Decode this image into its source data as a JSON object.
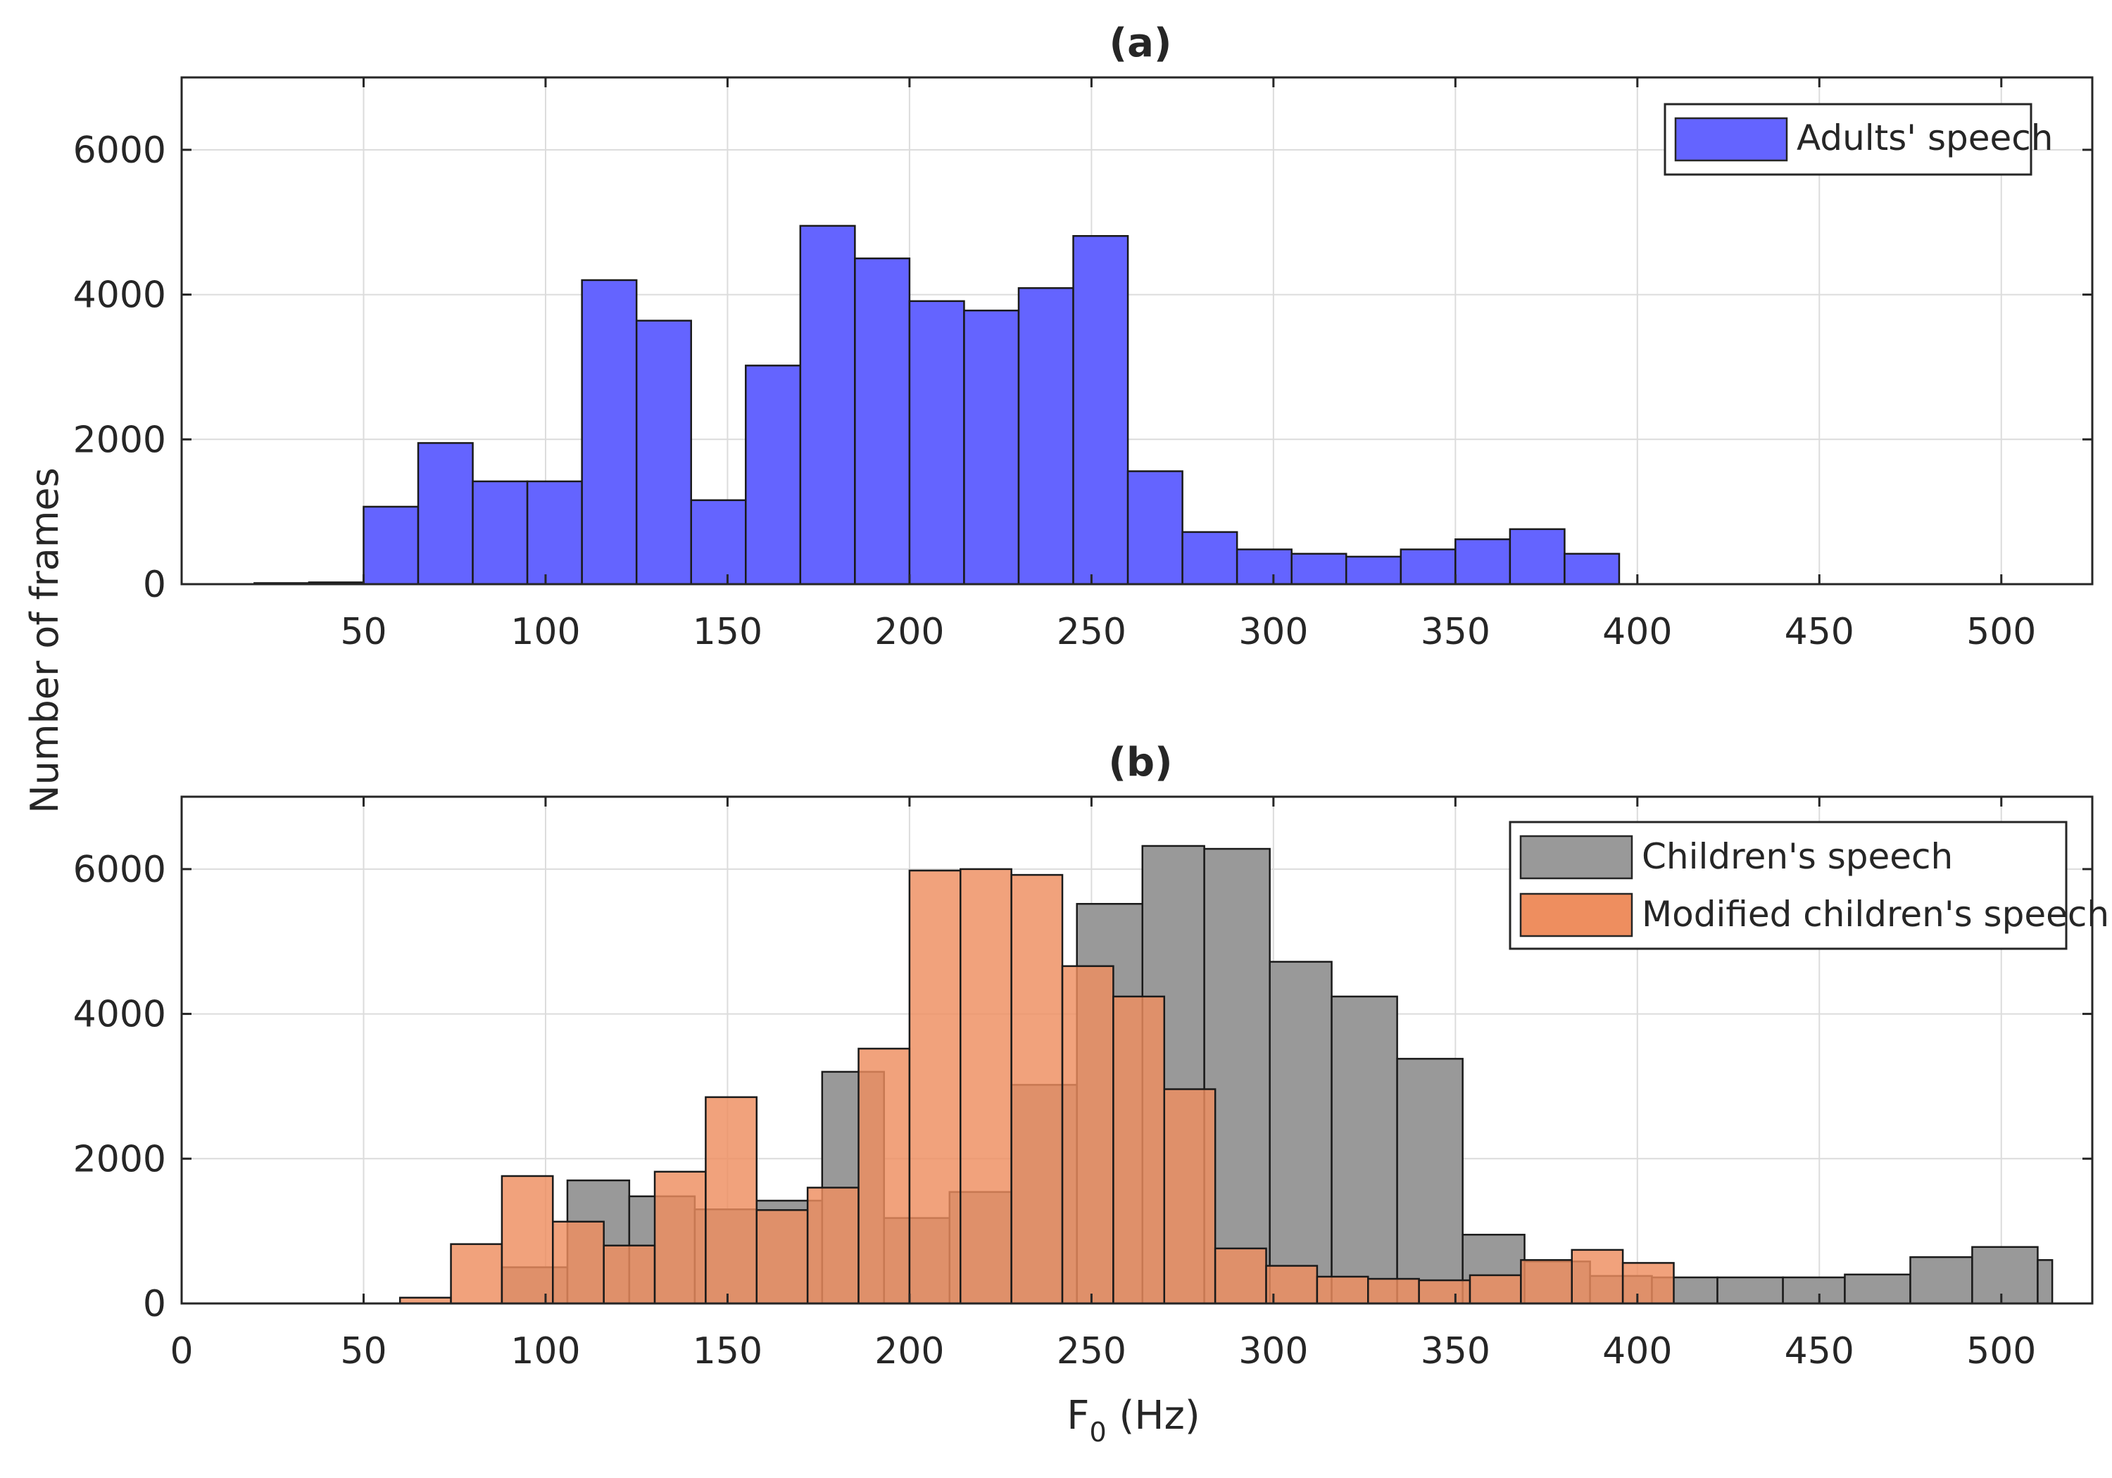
{
  "chart_data": [
    {
      "type": "bar",
      "panel_label": "(a)",
      "title": "(a)",
      "xlabel": "",
      "ylabel": "Number of frames",
      "xlim": [
        0,
        525
      ],
      "ylim": [
        0,
        7000
      ],
      "xticks": [
        50,
        100,
        150,
        200,
        250,
        300,
        350,
        400,
        450,
        500
      ],
      "yticks": [
        0,
        2000,
        4000,
        6000
      ],
      "grid": true,
      "legend": {
        "location": "top-right",
        "entries": [
          "Adults' speech"
        ]
      },
      "series": [
        {
          "name": "Adults' speech",
          "color": "#6464FF",
          "bins": [
            {
              "x0": 20,
              "x1": 35,
              "count": 15
            },
            {
              "x0": 35,
              "x1": 50,
              "count": 25
            },
            {
              "x0": 50,
              "x1": 65,
              "count": 1070
            },
            {
              "x0": 65,
              "x1": 80,
              "count": 1950
            },
            {
              "x0": 80,
              "x1": 95,
              "count": 1420
            },
            {
              "x0": 95,
              "x1": 110,
              "count": 1420
            },
            {
              "x0": 110,
              "x1": 125,
              "count": 4200
            },
            {
              "x0": 125,
              "x1": 140,
              "count": 3640
            },
            {
              "x0": 140,
              "x1": 155,
              "count": 1160
            },
            {
              "x0": 155,
              "x1": 170,
              "count": 3020
            },
            {
              "x0": 170,
              "x1": 185,
              "count": 4950
            },
            {
              "x0": 185,
              "x1": 200,
              "count": 4500
            },
            {
              "x0": 200,
              "x1": 215,
              "count": 3910
            },
            {
              "x0": 215,
              "x1": 230,
              "count": 3780
            },
            {
              "x0": 230,
              "x1": 245,
              "count": 4090
            },
            {
              "x0": 245,
              "x1": 260,
              "count": 4810
            },
            {
              "x0": 260,
              "x1": 275,
              "count": 1560
            },
            {
              "x0": 275,
              "x1": 290,
              "count": 720
            },
            {
              "x0": 290,
              "x1": 305,
              "count": 480
            },
            {
              "x0": 305,
              "x1": 320,
              "count": 420
            },
            {
              "x0": 320,
              "x1": 335,
              "count": 380
            },
            {
              "x0": 335,
              "x1": 350,
              "count": 480
            },
            {
              "x0": 350,
              "x1": 365,
              "count": 620
            },
            {
              "x0": 365,
              "x1": 380,
              "count": 760
            },
            {
              "x0": 380,
              "x1": 395,
              "count": 420
            }
          ]
        }
      ]
    },
    {
      "type": "bar",
      "panel_label": "(b)",
      "title": "(b)",
      "xlabel": "F",
      "xlabel_sub": "0",
      "xlabel_unit": " (Hz)",
      "ylabel": "Number of frames",
      "xlim": [
        0,
        525
      ],
      "ylim": [
        0,
        7000
      ],
      "xticks": [
        0,
        50,
        100,
        150,
        200,
        250,
        300,
        350,
        400,
        450,
        500
      ],
      "yticks": [
        0,
        2000,
        4000,
        6000
      ],
      "grid": true,
      "legend": {
        "location": "top-right",
        "entries": [
          "Children's speech",
          "Modified children's speech"
        ]
      },
      "series": [
        {
          "name": "Children's speech",
          "color": "#999999",
          "bins": [
            {
              "x0": 88,
              "x1": 106,
              "count": 500
            },
            {
              "x0": 106,
              "x1": 123,
              "count": 1700
            },
            {
              "x0": 123,
              "x1": 141,
              "count": 1480
            },
            {
              "x0": 141,
              "x1": 158,
              "count": 1300
            },
            {
              "x0": 158,
              "x1": 176,
              "count": 1420
            },
            {
              "x0": 176,
              "x1": 193,
              "count": 3200
            },
            {
              "x0": 193,
              "x1": 211,
              "count": 1180
            },
            {
              "x0": 211,
              "x1": 228,
              "count": 1540
            },
            {
              "x0": 228,
              "x1": 246,
              "count": 3020
            },
            {
              "x0": 246,
              "x1": 264,
              "count": 5520
            },
            {
              "x0": 264,
              "x1": 281,
              "count": 6320
            },
            {
              "x0": 281,
              "x1": 299,
              "count": 6280
            },
            {
              "x0": 299,
              "x1": 316,
              "count": 4720
            },
            {
              "x0": 316,
              "x1": 334,
              "count": 4240
            },
            {
              "x0": 334,
              "x1": 352,
              "count": 3380
            },
            {
              "x0": 352,
              "x1": 369,
              "count": 950
            },
            {
              "x0": 369,
              "x1": 387,
              "count": 580
            },
            {
              "x0": 387,
              "x1": 404,
              "count": 380
            },
            {
              "x0": 404,
              "x1": 422,
              "count": 360
            },
            {
              "x0": 422,
              "x1": 440,
              "count": 360
            },
            {
              "x0": 440,
              "x1": 457,
              "count": 360
            },
            {
              "x0": 457,
              "x1": 475,
              "count": 400
            },
            {
              "x0": 475,
              "x1": 492,
              "count": 640
            },
            {
              "x0": 492,
              "x1": 510,
              "count": 780
            },
            {
              "x0": 510,
              "x1": 514,
              "count": 600
            }
          ]
        },
        {
          "name": "Modified children's speech",
          "color": "#EE8E5F",
          "bins": [
            {
              "x0": 60,
              "x1": 74,
              "count": 80
            },
            {
              "x0": 74,
              "x1": 88,
              "count": 820
            },
            {
              "x0": 88,
              "x1": 102,
              "count": 1760
            },
            {
              "x0": 102,
              "x1": 116,
              "count": 1130
            },
            {
              "x0": 116,
              "x1": 130,
              "count": 800
            },
            {
              "x0": 130,
              "x1": 144,
              "count": 1820
            },
            {
              "x0": 144,
              "x1": 158,
              "count": 2850
            },
            {
              "x0": 158,
              "x1": 172,
              "count": 1290
            },
            {
              "x0": 172,
              "x1": 186,
              "count": 1600
            },
            {
              "x0": 186,
              "x1": 200,
              "count": 3520
            },
            {
              "x0": 200,
              "x1": 214,
              "count": 5980
            },
            {
              "x0": 214,
              "x1": 228,
              "count": 6000
            },
            {
              "x0": 228,
              "x1": 242,
              "count": 5920
            },
            {
              "x0": 242,
              "x1": 256,
              "count": 4660
            },
            {
              "x0": 256,
              "x1": 270,
              "count": 4240
            },
            {
              "x0": 270,
              "x1": 284,
              "count": 2960
            },
            {
              "x0": 284,
              "x1": 298,
              "count": 760
            },
            {
              "x0": 298,
              "x1": 312,
              "count": 520
            },
            {
              "x0": 312,
              "x1": 326,
              "count": 370
            },
            {
              "x0": 326,
              "x1": 340,
              "count": 340
            },
            {
              "x0": 340,
              "x1": 354,
              "count": 320
            },
            {
              "x0": 354,
              "x1": 368,
              "count": 390
            },
            {
              "x0": 368,
              "x1": 382,
              "count": 600
            },
            {
              "x0": 382,
              "x1": 396,
              "count": 740
            },
            {
              "x0": 396,
              "x1": 410,
              "count": 560
            }
          ]
        }
      ]
    }
  ],
  "figure": {
    "shared_ylabel": "Number of frames"
  }
}
